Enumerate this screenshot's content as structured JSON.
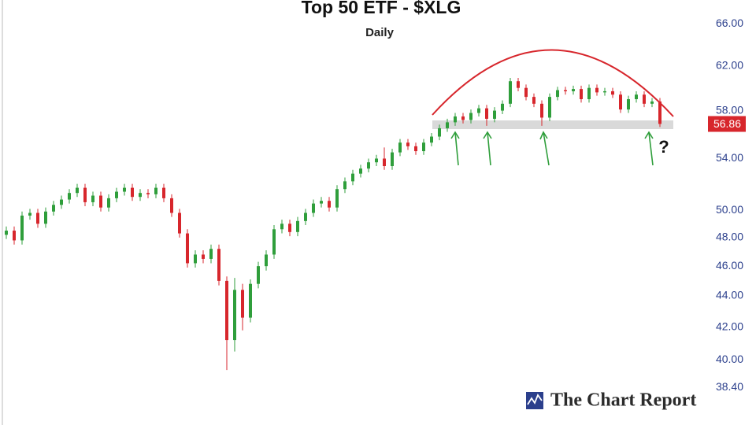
{
  "chart_data": {
    "type": "candlestick",
    "title": "Top 50 ETF - $XLG",
    "subtitle": "Daily",
    "log_scale": true,
    "ylim": [
      36.3,
      68.4
    ],
    "yticks": [
      {
        "value": 66,
        "label": "66.00"
      },
      {
        "value": 62,
        "label": "62.00"
      },
      {
        "value": 58,
        "label": "58.00"
      },
      {
        "value": 54,
        "label": "54.00"
      },
      {
        "value": 50,
        "label": "50.00"
      },
      {
        "value": 48,
        "label": "48.00"
      },
      {
        "value": 46,
        "label": "46.00"
      },
      {
        "value": 44,
        "label": "44.00"
      },
      {
        "value": 42,
        "label": "42.00"
      },
      {
        "value": 40,
        "label": "40.00"
      },
      {
        "value": 38.4,
        "label": "38.40"
      }
    ],
    "up_color": "#2f9e3b",
    "down_color": "#d7262c",
    "last_price": 56.86,
    "last_price_color": "#d7262c",
    "annotation": "?",
    "watermark": "The Chart Report",
    "open": [
      48.2,
      48.5,
      47.8,
      49.6,
      49.8,
      49.0,
      49.9,
      50.4,
      50.8,
      51.3,
      51.7,
      50.6,
      51.1,
      50.2,
      50.9,
      51.4,
      51.7,
      51.0,
      51.3,
      51.2,
      51.7,
      50.9,
      49.8,
      48.3,
      46.2,
      46.8,
      46.5,
      47.2,
      45.0,
      41.2,
      44.4,
      42.6,
      44.8,
      46.0,
      46.8,
      48.6,
      49.0,
      48.4,
      49.2,
      49.8,
      50.5,
      50.7,
      50.2,
      51.6,
      52.2,
      52.8,
      53.2,
      53.7,
      54.0,
      53.4,
      54.5,
      55.3,
      55.0,
      54.6,
      55.3,
      55.8,
      56.5,
      57.0,
      57.5,
      57.2,
      57.8,
      58.2,
      57.3,
      58.0,
      58.6,
      60.6,
      60.0,
      59.2,
      58.6,
      57.4,
      59.2,
      59.8,
      59.7,
      59.9,
      59.0,
      60.0,
      59.6,
      59.7,
      59.4,
      58.1,
      59.0,
      59.4,
      58.6,
      58.8
    ],
    "high": [
      48.8,
      48.8,
      49.9,
      50.1,
      50.1,
      50.2,
      50.7,
      51.1,
      51.6,
      52.0,
      52.0,
      51.4,
      51.4,
      51.2,
      51.7,
      52.0,
      52.0,
      51.6,
      51.6,
      52.0,
      52.0,
      51.2,
      50.1,
      48.6,
      47.1,
      47.1,
      47.5,
      47.5,
      45.3,
      45.2,
      44.8,
      45.1,
      46.3,
      47.1,
      48.9,
      49.3,
      49.3,
      49.5,
      50.1,
      50.8,
      51.0,
      51.0,
      51.9,
      52.5,
      53.1,
      53.5,
      54.0,
      54.3,
      54.9,
      54.8,
      55.6,
      55.6,
      55.3,
      55.6,
      56.1,
      56.8,
      57.3,
      57.8,
      57.8,
      58.1,
      58.5,
      58.5,
      58.3,
      58.9,
      60.9,
      60.9,
      60.3,
      59.5,
      58.9,
      59.5,
      60.1,
      60.1,
      60.2,
      60.2,
      60.3,
      60.3,
      60.0,
      60.0,
      59.7,
      59.3,
      59.7,
      59.7,
      59.1,
      59.1
    ],
    "low": [
      47.9,
      47.5,
      47.5,
      49.3,
      48.7,
      48.7,
      49.6,
      50.1,
      50.5,
      51.0,
      50.3,
      50.3,
      49.9,
      49.9,
      50.6,
      51.1,
      50.7,
      50.7,
      50.9,
      50.9,
      50.6,
      49.5,
      48.0,
      45.9,
      45.9,
      46.2,
      46.2,
      44.7,
      39.4,
      40.5,
      41.8,
      42.3,
      44.5,
      45.7,
      46.5,
      48.3,
      48.1,
      48.1,
      48.9,
      49.5,
      50.2,
      49.9,
      49.9,
      51.3,
      51.9,
      52.5,
      52.9,
      53.4,
      53.1,
      53.1,
      54.2,
      54.7,
      54.3,
      54.3,
      55.0,
      55.5,
      56.2,
      56.7,
      56.9,
      56.9,
      57.5,
      56.7,
      57.0,
      57.7,
      58.3,
      59.7,
      58.9,
      58.3,
      56.7,
      57.1,
      58.9,
      59.4,
      59.4,
      58.7,
      58.7,
      59.3,
      59.3,
      59.1,
      57.8,
      57.8,
      58.7,
      58.3,
      58.3,
      56.6
    ],
    "close": [
      48.5,
      47.8,
      49.6,
      49.8,
      49.0,
      49.9,
      50.4,
      50.8,
      51.3,
      51.7,
      50.6,
      51.1,
      50.2,
      50.9,
      51.4,
      51.7,
      51.0,
      51.3,
      51.2,
      51.7,
      50.9,
      49.8,
      48.3,
      46.2,
      46.8,
      46.5,
      47.2,
      45.0,
      41.2,
      44.4,
      42.6,
      44.8,
      46.0,
      46.8,
      48.6,
      49.0,
      48.4,
      49.2,
      49.8,
      50.5,
      50.7,
      50.2,
      51.6,
      52.2,
      52.8,
      53.2,
      53.7,
      54.0,
      53.4,
      54.5,
      55.3,
      55.0,
      54.6,
      55.3,
      55.8,
      56.5,
      57.0,
      57.5,
      57.2,
      57.8,
      58.2,
      57.3,
      58.0,
      58.6,
      60.6,
      60.0,
      59.2,
      58.6,
      57.4,
      59.2,
      59.8,
      59.7,
      59.9,
      59.0,
      60.0,
      59.6,
      59.7,
      59.4,
      58.1,
      59.0,
      59.4,
      58.6,
      58.8,
      56.86
    ]
  }
}
